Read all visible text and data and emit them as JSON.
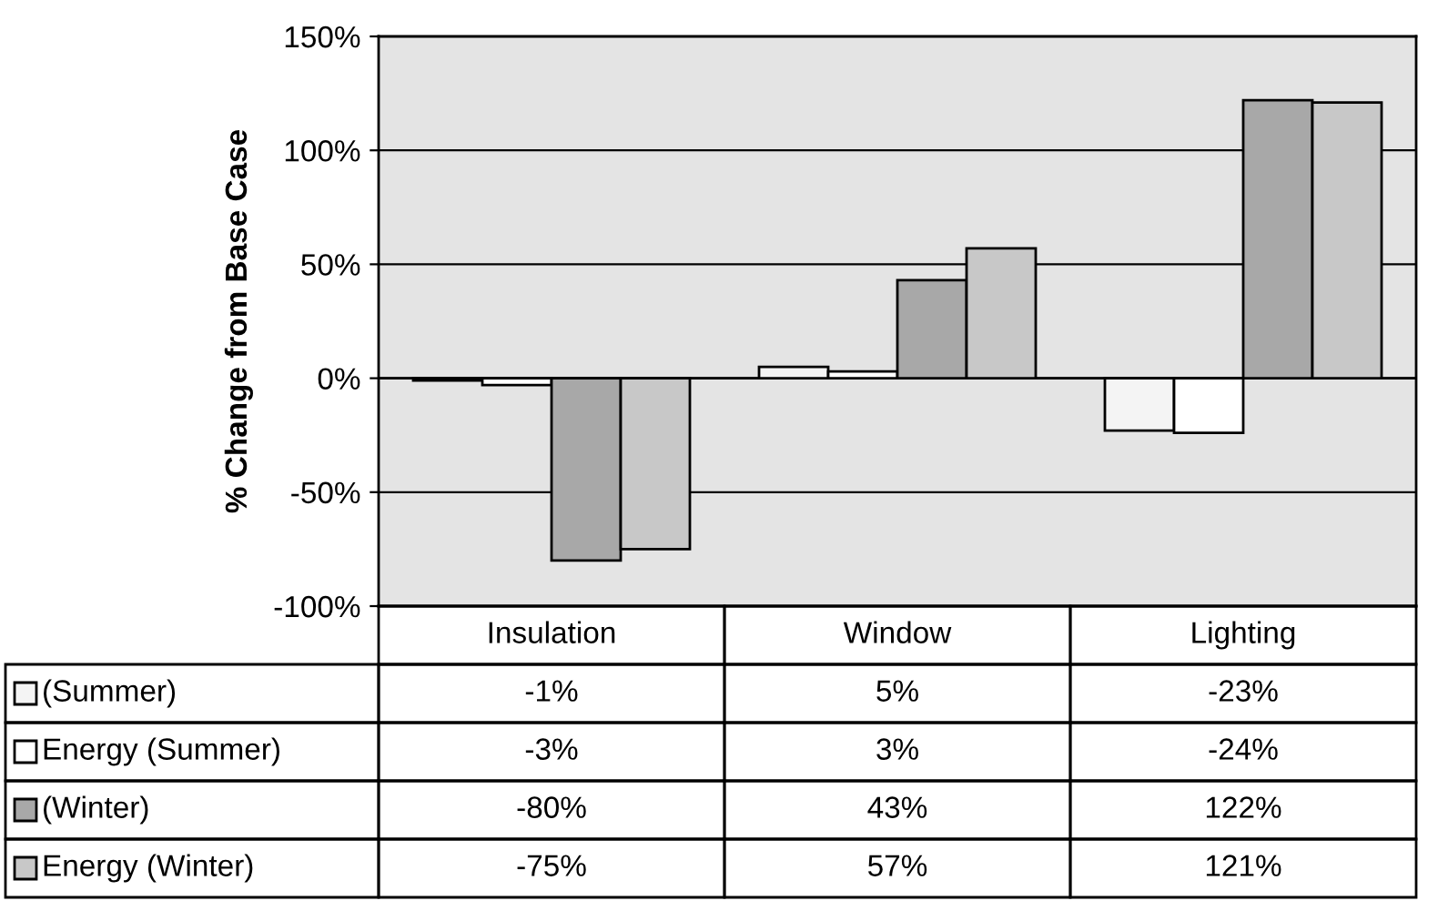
{
  "chart_data": {
    "type": "bar",
    "ylabel": "% Change from Base Case",
    "categories": [
      "Insulation",
      "Window",
      "Lighting"
    ],
    "series": [
      {
        "name": "(Summer)",
        "color": "#f4f4f4",
        "values": [
          -1,
          5,
          -23
        ],
        "value_labels": [
          "-1%",
          "5%",
          "-23%"
        ]
      },
      {
        "name": "Energy (Summer)",
        "color": "#ffffff",
        "values": [
          -3,
          3,
          -24
        ],
        "value_labels": [
          "-3%",
          "3%",
          "-24%"
        ]
      },
      {
        "name": "(Winter)",
        "color": "#a8a8a8",
        "values": [
          -80,
          43,
          122
        ],
        "value_labels": [
          "-80%",
          "43%",
          "122%"
        ]
      },
      {
        "name": "Energy (Winter)",
        "color": "#c8c8c8",
        "values": [
          -75,
          57,
          121
        ],
        "value_labels": [
          "-75%",
          "57%",
          "121%"
        ]
      }
    ],
    "ylim": [
      -100,
      150
    ],
    "yticks": [
      {
        "value": -100,
        "label": "-100%"
      },
      {
        "value": -50,
        "label": "-50%"
      },
      {
        "value": 0,
        "label": "0%"
      },
      {
        "value": 50,
        "label": "50%"
      },
      {
        "value": 100,
        "label": "100%"
      },
      {
        "value": 150,
        "label": "150%"
      }
    ],
    "grid": "y",
    "legend": "bottom"
  }
}
